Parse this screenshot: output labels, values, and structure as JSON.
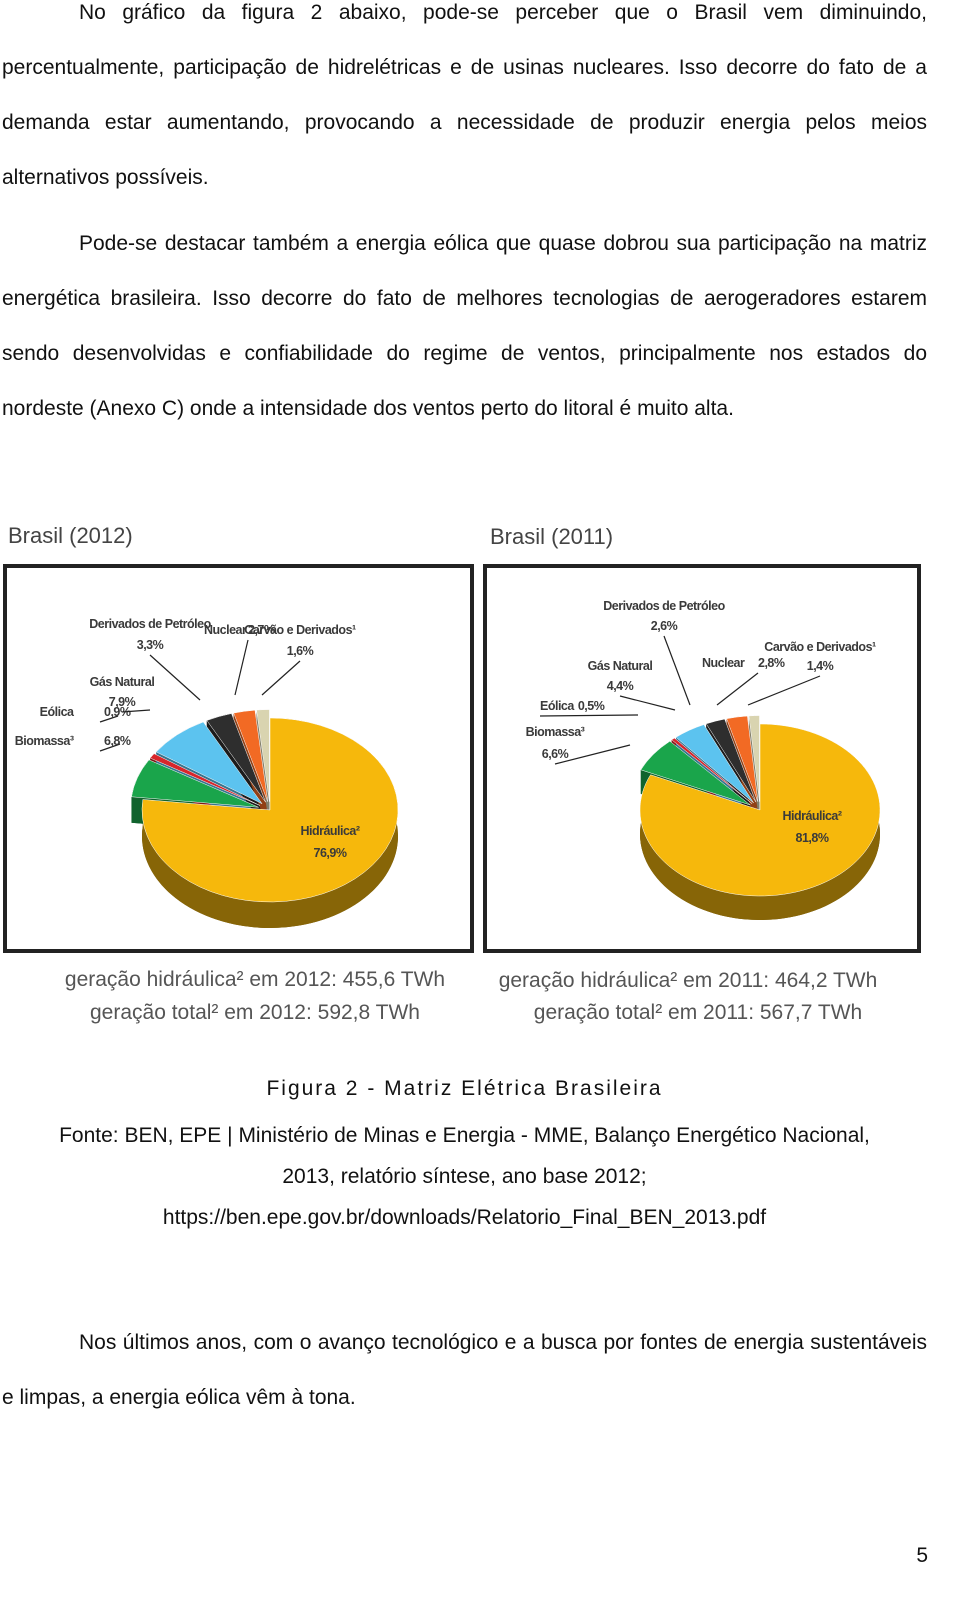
{
  "paragraphs": [
    "No gráfico da figura 2 abaixo, pode-se perceber que o Brasil vem diminuindo, percentualmente, participação de hidrelétricas e de usinas nucleares. Isso decorre do fato de a demanda estar aumentando, provocando a necessidade de produzir energia pelos meios alternativos possíveis.",
    "Pode-se destacar também a energia eólica que quase dobrou sua participação na matriz energética brasileira. Isso decorre do fato de melhores tecnologias de aerogeradores estarem sendo desenvolvidas e confiabilidade do regime de ventos, principalmente nos estados do nordeste (Anexo C) onde a intensidade dos ventos perto do litoral é muito alta."
  ],
  "chart_data": [
    {
      "type": "pie",
      "title": "Brasil (2012)",
      "categories": [
        "Hidráulica²",
        "Biomassa³",
        "Eólica",
        "Gás Natural",
        "Derivados de Petróleo",
        "Nuclear",
        "Carvão e Derivados¹"
      ],
      "values": [
        76.9,
        6.8,
        0.9,
        7.9,
        3.3,
        2.7,
        1.6
      ],
      "value_labels": [
        "76,9%",
        "6,8%",
        "0,9%",
        "7,9%",
        "3,3%",
        "2,7%",
        "1,6%"
      ],
      "colors": [
        "#f6b80c",
        "#1aa54b",
        "#d7262b",
        "#5cc3ef",
        "#2e2e2e",
        "#f26a24",
        "#d9d4b0"
      ],
      "notes": [
        "geração hidráulica² em 2012: 455,6 TWh",
        "geração total² em 2012: 592,8 TWh"
      ]
    },
    {
      "type": "pie",
      "title": "Brasil (2011)",
      "categories": [
        "Hidráulica²",
        "Biomassa³",
        "Eólica",
        "Gás Natural",
        "Derivados de Petróleo",
        "Nuclear",
        "Carvão e Derivados¹"
      ],
      "values": [
        81.8,
        6.6,
        0.5,
        4.4,
        2.6,
        2.8,
        1.4
      ],
      "value_labels": [
        "81,8%",
        "6,6%",
        "0,5%",
        "4,4%",
        "2,6%",
        "2,8%",
        "1,4%"
      ],
      "colors": [
        "#f6b80c",
        "#1aa54b",
        "#d7262b",
        "#5cc3ef",
        "#2e2e2e",
        "#f26a24",
        "#d9d4b0"
      ],
      "notes": [
        "geração hidráulica² em 2011: 464,2 TWh",
        "geração total² em 2011: 567,7 TWh"
      ]
    }
  ],
  "figure": {
    "caption": "Figura 2 - Matriz Elétrica Brasileira",
    "source": [
      "Fonte: BEN, EPE | Ministério de Minas e Energia - MME, Balanço Energético Nacional,",
      "2013, relatório síntese, ano base 2012;",
      "https://ben.epe.gov.br/downloads/Relatorio_Final_BEN_2013.pdf"
    ]
  },
  "closing": "Nos últimos anos, com o avanço tecnológico e a busca por fontes de energia sustentáveis e limpas, a energia eólica vêm à tona.",
  "page_number": "5"
}
